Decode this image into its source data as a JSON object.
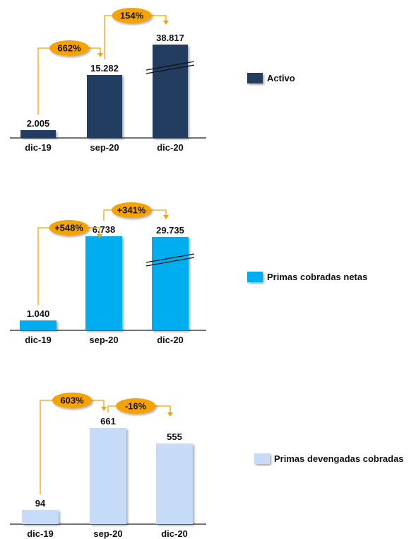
{
  "chart_data": [
    {
      "type": "bar",
      "categories": [
        "dic-19",
        "sep-20",
        "dic-20"
      ],
      "series": [
        {
          "name": "Activo",
          "values": [
            2.005,
            15.282,
            38.817
          ],
          "value_labels": [
            "2.005",
            "15.282",
            "38.817"
          ]
        }
      ],
      "axis_break_on": "dic-20",
      "growth_labels": [
        "662%",
        "154%"
      ],
      "colors": {
        "bar": "#243e60",
        "badge": "#f5a300",
        "arrow": "#f5a300"
      }
    },
    {
      "type": "bar",
      "categories": [
        "dic-19",
        "sep-20",
        "dic-20"
      ],
      "series": [
        {
          "name": "Primas cobradas netas",
          "values": [
            1.04,
            6.738,
            29.735
          ],
          "value_labels": [
            "1.040",
            "6.738",
            "29.735"
          ]
        }
      ],
      "axis_break_on": "dic-20",
      "growth_labels": [
        "+548%",
        "+341%"
      ],
      "colors": {
        "bar": "#00aeef",
        "badge": "#f5a300",
        "arrow": "#f5a300"
      }
    },
    {
      "type": "bar",
      "categories": [
        "dic-19",
        "sep-20",
        "dic-20"
      ],
      "series": [
        {
          "name": "Primas devengadas cobradas",
          "values": [
            94,
            661,
            555
          ],
          "value_labels": [
            "94",
            "661",
            "555"
          ]
        }
      ],
      "growth_labels": [
        "603%",
        "-16%"
      ],
      "colors": {
        "bar": "#c6dbf7",
        "badge": "#f5a300",
        "arrow": "#f5a300"
      }
    }
  ]
}
